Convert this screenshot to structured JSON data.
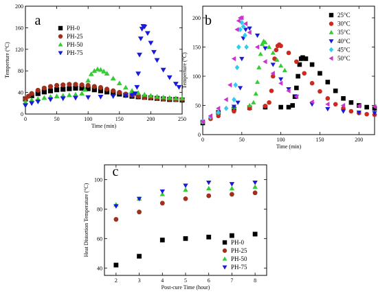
{
  "chart_data": [
    {
      "id": "a",
      "type": "scatter",
      "panel_label": "a",
      "xlabel": "Time (min)",
      "ylabel": "Temperture (°C)",
      "xlim": [
        0,
        250
      ],
      "ylim": [
        0,
        200
      ],
      "xticks": [
        0,
        50,
        100,
        150,
        200,
        250
      ],
      "yticks": [
        0,
        40,
        80,
        120,
        160,
        200
      ],
      "legend_position": "top-left",
      "series": [
        {
          "name": "PH-0",
          "color": "#000000",
          "marker": "square",
          "x": [
            0,
            10,
            20,
            30,
            40,
            50,
            60,
            70,
            80,
            90,
            100,
            110,
            120,
            130,
            140,
            150,
            160,
            170,
            180,
            190,
            200,
            210,
            220,
            230,
            240,
            250
          ],
          "y": [
            28,
            34,
            38,
            41,
            43,
            45,
            46,
            47,
            48,
            48,
            47,
            45,
            43,
            41,
            39,
            37,
            35,
            33,
            32,
            31,
            30,
            29,
            28,
            27,
            27,
            26
          ]
        },
        {
          "name": "PH-25",
          "color": "#a0301e",
          "marker": "circle",
          "x": [
            0,
            5,
            10,
            20,
            30,
            40,
            50,
            60,
            70,
            80,
            90,
            100,
            110,
            120,
            130,
            140,
            150,
            160,
            170,
            180,
            190,
            200,
            210,
            220,
            230,
            240,
            250
          ],
          "y": [
            28,
            33,
            38,
            44,
            48,
            51,
            53,
            54,
            55,
            55,
            54,
            53,
            51,
            49,
            46,
            43,
            40,
            37,
            35,
            33,
            31,
            30,
            29,
            28,
            28,
            27,
            27
          ]
        },
        {
          "name": "PH-50",
          "color": "#33cc33",
          "marker": "triangle-up",
          "x": [
            0,
            10,
            20,
            30,
            40,
            50,
            60,
            70,
            80,
            90,
            95,
            100,
            105,
            110,
            115,
            120,
            125,
            130,
            140,
            150,
            160,
            170,
            180,
            190,
            200,
            210,
            220,
            230,
            240,
            250
          ],
          "y": [
            22,
            26,
            28,
            30,
            32,
            33,
            34,
            35,
            36,
            38,
            45,
            62,
            74,
            80,
            83,
            82,
            79,
            75,
            66,
            57,
            49,
            43,
            39,
            36,
            34,
            32,
            31,
            30,
            29,
            29
          ]
        },
        {
          "name": "PH-75",
          "color": "#1a1adb",
          "marker": "triangle-down",
          "x": [
            0,
            10,
            20,
            40,
            60,
            80,
            100,
            120,
            140,
            160,
            170,
            175,
            178,
            180,
            182,
            184,
            186,
            188,
            190,
            195,
            200,
            205,
            210,
            220,
            230,
            240,
            245
          ],
          "y": [
            16,
            20,
            23,
            27,
            29,
            30,
            31,
            32,
            33,
            34,
            35,
            38,
            50,
            75,
            110,
            140,
            158,
            163,
            162,
            150,
            132,
            115,
            100,
            82,
            68,
            56,
            50
          ]
        }
      ]
    },
    {
      "id": "b",
      "type": "scatter",
      "panel_label": "b",
      "xlabel": "Time (min)",
      "ylabel": "Temperture (°C)",
      "xlim": [
        0,
        220
      ],
      "ylim": [
        0,
        220
      ],
      "xticks": [
        0,
        50,
        100,
        150,
        200
      ],
      "yticks": [
        0,
        50,
        100,
        150,
        200
      ],
      "legend_position": "top-right",
      "series": [
        {
          "name": "25°C",
          "color": "#000000",
          "marker": "square",
          "x": [
            0,
            20,
            40,
            60,
            80,
            100,
            110,
            115,
            118,
            120,
            122,
            124,
            126,
            128,
            132,
            140,
            150,
            160,
            170,
            180,
            190,
            200,
            210,
            220
          ],
          "y": [
            20,
            38,
            44,
            46,
            47,
            47,
            47,
            50,
            65,
            80,
            100,
            120,
            130,
            132,
            130,
            120,
            105,
            90,
            75,
            62,
            55,
            50,
            47,
            45
          ]
        },
        {
          "name": "30°C",
          "color": "#cc2a1e",
          "marker": "circle",
          "x": [
            0,
            10,
            20,
            40,
            60,
            80,
            85,
            88,
            90,
            92,
            94,
            96,
            98,
            100,
            110,
            120,
            130,
            140,
            150,
            160,
            170,
            180,
            190,
            200,
            210,
            220
          ],
          "y": [
            22,
            27,
            32,
            40,
            45,
            49,
            55,
            75,
            100,
            130,
            145,
            152,
            154,
            152,
            140,
            125,
            105,
            88,
            74,
            62,
            52,
            45,
            40,
            37,
            35,
            34
          ]
        },
        {
          "name": "35°C",
          "color": "#33cc33",
          "marker": "triangle-up",
          "x": [
            0,
            20,
            40,
            60,
            65,
            68,
            70,
            72,
            74,
            76,
            78,
            80,
            85,
            90,
            95,
            100,
            105
          ],
          "y": [
            22,
            38,
            47,
            50,
            55,
            70,
            90,
            115,
            138,
            155,
            160,
            158,
            150,
            140,
            128,
            118,
            110
          ]
        },
        {
          "name": "40°C",
          "color": "#1a1adb",
          "marker": "triangle-down",
          "x": [
            0,
            20,
            40,
            45,
            48,
            50,
            52,
            55,
            60,
            70,
            80,
            90,
            100,
            110,
            120,
            140,
            160,
            180,
            200,
            220
          ],
          "y": [
            22,
            38,
            48,
            55,
            80,
            130,
            165,
            180,
            182,
            170,
            148,
            120,
            95,
            78,
            65,
            52,
            44,
            40,
            38,
            37
          ]
        },
        {
          "name": "45°C",
          "color": "#33ccee",
          "marker": "diamond",
          "x": [
            0,
            10,
            20,
            30,
            40,
            42,
            44,
            46,
            48,
            50,
            52,
            54,
            56
          ],
          "y": [
            22,
            30,
            38,
            45,
            60,
            85,
            115,
            150,
            180,
            192,
            185,
            170,
            150
          ]
        },
        {
          "name": "50°C",
          "color": "#cc33cc",
          "marker": "triangle-left",
          "x": [
            0,
            10,
            20,
            30,
            35,
            40,
            44,
            46,
            48,
            50,
            55,
            60,
            70,
            80,
            90,
            100,
            110,
            120,
            140,
            160,
            180,
            200,
            220
          ],
          "y": [
            22,
            32,
            45,
            60,
            85,
            130,
            180,
            195,
            200,
            200,
            190,
            175,
            150,
            125,
            105,
            88,
            75,
            65,
            56,
            52,
            50,
            49,
            48
          ]
        }
      ]
    },
    {
      "id": "c",
      "type": "scatter",
      "panel_label": "c",
      "xlabel": "Post-cure Time (hour)",
      "ylabel": "Heat Distortion Temperature (°C)",
      "xlim": [
        1.5,
        8.5
      ],
      "ylim": [
        35,
        110
      ],
      "xticks": [
        2,
        3,
        4,
        5,
        6,
        7,
        8
      ],
      "yticks": [
        40,
        60,
        80,
        100
      ],
      "legend_position": "bottom-right",
      "series": [
        {
          "name": "PH-0",
          "color": "#000000",
          "marker": "square",
          "x": [
            2,
            3,
            4,
            5,
            6,
            7,
            8
          ],
          "y": [
            42,
            48,
            59,
            60,
            61,
            62,
            63
          ]
        },
        {
          "name": "PH-25",
          "color": "#a0301e",
          "marker": "circle",
          "x": [
            2,
            3,
            4,
            5,
            6,
            7,
            8
          ],
          "y": [
            73,
            78,
            84,
            87,
            89,
            90,
            91
          ]
        },
        {
          "name": "PH-50",
          "color": "#33cc33",
          "marker": "triangle-up",
          "x": [
            2,
            3,
            4,
            5,
            6,
            7,
            8
          ],
          "y": [
            83,
            87,
            90,
            93,
            94,
            94,
            95
          ]
        },
        {
          "name": "PH-75",
          "color": "#1a1adb",
          "marker": "triangle-down",
          "x": [
            2,
            3,
            4,
            5,
            6,
            7,
            8
          ],
          "y": [
            82,
            87,
            92,
            96,
            98,
            97,
            98
          ]
        }
      ]
    }
  ]
}
